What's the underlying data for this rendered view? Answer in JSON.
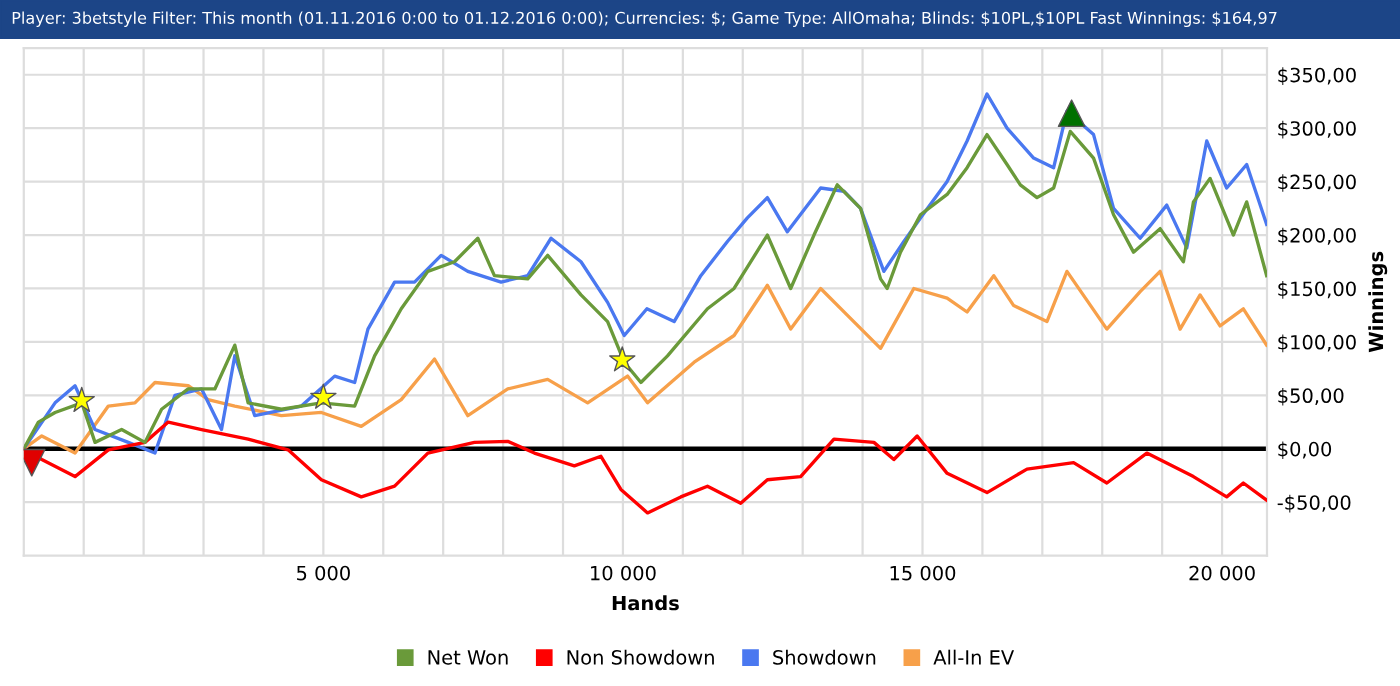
{
  "chart_data": {
    "type": "line",
    "title": "Player: 3betstyle Filter: This month (01.11.2016 0:00 to 01.12.2016 0:00); Currencies: $; Game Type: AllOmaha; Blinds: $10PL,$10PL Fast Winnings: $164,97",
    "xlabel": "Hands",
    "ylabel": "Winnings",
    "xlim": [
      0,
      20750
    ],
    "ylim": [
      -100,
      375
    ],
    "xticks": [
      {
        "value": 1000,
        "label": null
      },
      {
        "value": 2000,
        "label": null
      },
      {
        "value": 3000,
        "label": null
      },
      {
        "value": 4000,
        "label": null
      },
      {
        "value": 5000,
        "label": "5 000"
      },
      {
        "value": 6000,
        "label": null
      },
      {
        "value": 7000,
        "label": null
      },
      {
        "value": 8000,
        "label": null
      },
      {
        "value": 9000,
        "label": null
      },
      {
        "value": 10000,
        "label": "10 000"
      },
      {
        "value": 11000,
        "label": null
      },
      {
        "value": 12000,
        "label": null
      },
      {
        "value": 13000,
        "label": null
      },
      {
        "value": 14000,
        "label": null
      },
      {
        "value": 15000,
        "label": "15 000"
      },
      {
        "value": 16000,
        "label": null
      },
      {
        "value": 17000,
        "label": null
      },
      {
        "value": 18000,
        "label": null
      },
      {
        "value": 19000,
        "label": null
      },
      {
        "value": 20000,
        "label": "20 000"
      }
    ],
    "yticks": [
      {
        "value": -50,
        "label": "-$50,00"
      },
      {
        "value": 0,
        "label": "$0,00"
      },
      {
        "value": 50,
        "label": "$50,00"
      },
      {
        "value": 100,
        "label": "$100,00"
      },
      {
        "value": 150,
        "label": "$150,00"
      },
      {
        "value": 200,
        "label": "$200,00"
      },
      {
        "value": 250,
        "label": "$250,00"
      },
      {
        "value": 300,
        "label": "$300,00"
      },
      {
        "value": 350,
        "label": "$350,00"
      }
    ],
    "grid": true,
    "legend": "bottom",
    "marker": "none",
    "line_style": "solid",
    "ref_lines": [
      {
        "axis": "y",
        "value": 0,
        "label": null,
        "color": "#000000"
      }
    ],
    "series": [
      {
        "name": "Net Won",
        "color": "#6a9a3a",
        "x": [
          0,
          244,
          522,
          967,
          1189,
          1633,
          2022,
          2300,
          2744,
          3189,
          3522,
          3744,
          4300,
          4967,
          5522,
          5855,
          6300,
          6744,
          7189,
          7578,
          7855,
          8411,
          8744,
          9300,
          9744,
          10022,
          10300,
          10744,
          11411,
          11855,
          12411,
          12800,
          13189,
          13578,
          13966,
          14300,
          14411,
          14633,
          14966,
          15411,
          15744,
          16077,
          16411,
          16633,
          16911,
          17189,
          17466,
          17855,
          18189,
          18522,
          18966,
          19355,
          19522,
          19800,
          20189,
          20411,
          20744
        ],
        "values": [
          0,
          25,
          34,
          43,
          6,
          18,
          6,
          37,
          56,
          56,
          97,
          43,
          37,
          43,
          40,
          87,
          131,
          166,
          175,
          197,
          162,
          159,
          181,
          144,
          119,
          81,
          62,
          87,
          131,
          150,
          200,
          150,
          200,
          247,
          225,
          159,
          150,
          184,
          219,
          238,
          263,
          294,
          266,
          247,
          235,
          244,
          297,
          272,
          219,
          184,
          206,
          175,
          231,
          253,
          200,
          231,
          162
        ]
      },
      {
        "name": "Non Showdown",
        "color": "#ff0000",
        "x": [
          0,
          300,
          855,
          1411,
          2022,
          2411,
          2967,
          3744,
          4411,
          4967,
          5633,
          6189,
          6744,
          7522,
          8077,
          8522,
          9189,
          9633,
          9966,
          10411,
          10966,
          11411,
          11966,
          12411,
          12966,
          13522,
          14189,
          14522,
          14911,
          15411,
          16077,
          16744,
          17522,
          18077,
          18744,
          19522,
          20077,
          20355,
          20744
        ],
        "values": [
          0,
          -10,
          -26,
          -1,
          6,
          25,
          18,
          9,
          -1,
          -29,
          -45,
          -35,
          -4,
          6,
          7,
          -4,
          -16,
          -7,
          -38,
          -60,
          -45,
          -35,
          -51,
          -29,
          -26,
          9,
          6,
          -10,
          12,
          -23,
          -41,
          -19,
          -13,
          -32,
          -4,
          -26,
          -45,
          -32,
          -48
        ]
      },
      {
        "name": "Showdown",
        "color": "#4a78f0",
        "x": [
          0,
          522,
          855,
          1189,
          1744,
          2189,
          2522,
          2967,
          3300,
          3522,
          3855,
          4633,
          5189,
          5522,
          5744,
          6189,
          6522,
          6966,
          7411,
          7966,
          8411,
          8800,
          9300,
          9744,
          10022,
          10400,
          10855,
          11300,
          11744,
          12077,
          12411,
          12744,
          13300,
          13689,
          13966,
          14355,
          14689,
          14966,
          15411,
          15744,
          16077,
          16411,
          16855,
          17189,
          17411,
          17855,
          18189,
          18633,
          19077,
          19411,
          19744,
          20077,
          20411,
          20744
        ],
        "values": [
          0,
          43,
          59,
          18,
          6,
          -4,
          50,
          56,
          18,
          87,
          31,
          40,
          68,
          62,
          112,
          156,
          156,
          181,
          166,
          156,
          162,
          197,
          175,
          137,
          106,
          131,
          119,
          162,
          194,
          216,
          235,
          203,
          244,
          241,
          225,
          166,
          194,
          216,
          250,
          288,
          332,
          300,
          272,
          263,
          316,
          294,
          225,
          197,
          228,
          188,
          288,
          244,
          266,
          210
        ]
      },
      {
        "name": "All-In EV",
        "color": "#f7a04a",
        "x": [
          0,
          300,
          855,
          1411,
          1855,
          2189,
          2744,
          3077,
          3522,
          4300,
          4967,
          5633,
          6300,
          6855,
          7411,
          8077,
          8744,
          9411,
          10077,
          10411,
          11189,
          11855,
          12411,
          12800,
          13300,
          13744,
          14300,
          14855,
          15411,
          15744,
          16189,
          16522,
          17077,
          17411,
          18077,
          18633,
          18966,
          19300,
          19633,
          19966,
          20355,
          20744
        ],
        "values": [
          0,
          12,
          -4,
          40,
          43,
          62,
          59,
          46,
          40,
          31,
          34,
          21,
          46,
          84,
          31,
          56,
          65,
          43,
          68,
          43,
          81,
          106,
          153,
          112,
          150,
          125,
          94,
          150,
          141,
          128,
          162,
          134,
          119,
          166,
          112,
          147,
          166,
          112,
          144,
          115,
          131,
          97
        ]
      },
      {
        "type": "scatter",
        "marker": "star",
        "color": "#ffff00",
        "x": [
          967,
          5000,
          9989
        ],
        "values": [
          45,
          48,
          83
        ]
      },
      {
        "type": "scatter",
        "marker": "triangle",
        "color": "#007000",
        "x": [
          17489
        ],
        "values": [
          314
        ]
      },
      {
        "type": "scatter",
        "marker": "triangle_down",
        "color": "#e00000",
        "x": [
          133
        ],
        "values": [
          -13
        ]
      }
    ]
  }
}
